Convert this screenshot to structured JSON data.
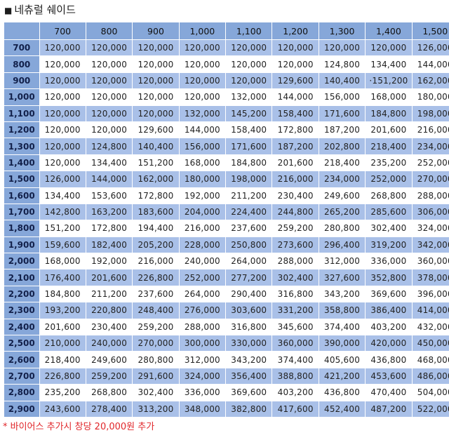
{
  "title": "네츄럴 쉐이드",
  "title_marker": "■",
  "columns": [
    "700",
    "800",
    "900",
    "1,000",
    "1,100",
    "1,200",
    "1,300",
    "1,400",
    "1,500"
  ],
  "rows": [
    {
      "label": "700",
      "values": [
        "120,000",
        "120,000",
        "120,000",
        "120,000",
        "120,000",
        "120,000",
        "120,000",
        "120,000",
        "126,000"
      ]
    },
    {
      "label": "800",
      "values": [
        "120,000",
        "120,000",
        "120,000",
        "120,000",
        "120,000",
        "120,000",
        "124,800",
        "134,400",
        "144,000"
      ]
    },
    {
      "label": "900",
      "values": [
        "120,000",
        "120,000",
        "120,000",
        "120,000",
        "120,000",
        "129,600",
        "140,400",
        "·151,200",
        "162,000"
      ]
    },
    {
      "label": "1,000",
      "values": [
        "120,000",
        "120,000",
        "120,000",
        "120,000",
        "132,000",
        "144,000",
        "156,000",
        "168,000",
        "180,000"
      ]
    },
    {
      "label": "1,100",
      "values": [
        "120,000",
        "120,000",
        "120,000",
        "132,000",
        "145,200",
        "158,400",
        "171,600",
        "184,800",
        "198,000"
      ]
    },
    {
      "label": "1,200",
      "values": [
        "120,000",
        "120,000",
        "129,600",
        "144,000",
        "158,400",
        "172,800",
        "187,200",
        "201,600",
        "216,000"
      ]
    },
    {
      "label": "1,300",
      "values": [
        "120,000",
        "124,800",
        "140,400",
        "156,000",
        "171,600",
        "187,200",
        "202,800",
        "218,400",
        "234,000"
      ]
    },
    {
      "label": "1,400",
      "values": [
        "120,000",
        "134,400",
        "151,200",
        "168,000",
        "184,800",
        "201,600",
        "218,400",
        "235,200",
        "252,000"
      ]
    },
    {
      "label": "1,500",
      "values": [
        "126,000",
        "144,000",
        "162,000",
        "180,000",
        "198,000",
        "216,000",
        "234,000",
        "252,000",
        "270,000"
      ]
    },
    {
      "label": "1,600",
      "values": [
        "134,400",
        "153,600",
        "172,800",
        "192,000",
        "211,200",
        "230,400",
        "249,600",
        "268,800",
        "288,000"
      ]
    },
    {
      "label": "1,700",
      "values": [
        "142,800",
        "163,200",
        "183,600",
        "204,000",
        "224,400",
        "244,800",
        "265,200",
        "285,600",
        "306,000"
      ]
    },
    {
      "label": "1,800",
      "values": [
        "151,200",
        "172,800",
        "194,400",
        "216,000",
        "237,600",
        "259,200",
        "280,800",
        "302,400",
        "324,000"
      ]
    },
    {
      "label": "1,900",
      "values": [
        "159,600",
        "182,400",
        "205,200",
        "228,000",
        "250,800",
        "273,600",
        "296,400",
        "319,200",
        "342,000"
      ]
    },
    {
      "label": "2,000",
      "values": [
        "168,000",
        "192,000",
        "216,000",
        "240,000",
        "264,000",
        "288,000",
        "312,000",
        "336,000",
        "360,000"
      ]
    },
    {
      "label": "2,100",
      "values": [
        "176,400",
        "201,600",
        "226,800",
        "252,000",
        "277,200",
        "302,400",
        "327,600",
        "352,800",
        "378,000"
      ]
    },
    {
      "label": "2,200",
      "values": [
        "184,800",
        "211,200",
        "237,600",
        "264,000",
        "290,400",
        "316,800",
        "343,200",
        "369,600",
        "396,000"
      ]
    },
    {
      "label": "2,300",
      "values": [
        "193,200",
        "220,800",
        "248,400",
        "276,000",
        "303,600",
        "331,200",
        "358,800",
        "386,400",
        "414,000"
      ]
    },
    {
      "label": "2,400",
      "values": [
        "201,600",
        "230,400",
        "259,200",
        "288,000",
        "316,800",
        "345,600",
        "374,400",
        "403,200",
        "432,000"
      ]
    },
    {
      "label": "2,500",
      "values": [
        "210,000",
        "240,000",
        "270,000",
        "300,000",
        "330,000",
        "360,000",
        "390,000",
        "420,000",
        "450,000"
      ]
    },
    {
      "label": "2,600",
      "values": [
        "218,400",
        "249,600",
        "280,800",
        "312,000",
        "343,200",
        "374,400",
        "405,600",
        "436,800",
        "468,000"
      ]
    },
    {
      "label": "2,700",
      "values": [
        "226,800",
        "259,200",
        "291,600",
        "324,000",
        "356,400",
        "388,800",
        "421,200",
        "453,600",
        "486,000"
      ]
    },
    {
      "label": "2,800",
      "values": [
        "235,200",
        "268,800",
        "302,400",
        "336,000",
        "369,600",
        "403,200",
        "436,800",
        "470,400",
        "504,000"
      ]
    },
    {
      "label": "2,900",
      "values": [
        "243,600",
        "278,400",
        "313,200",
        "348,000",
        "382,800",
        "417,600",
        "452,400",
        "487,200",
        "522,000"
      ]
    }
  ],
  "footnote": "* 바이어스 추가시 창당 20,000원 추가"
}
